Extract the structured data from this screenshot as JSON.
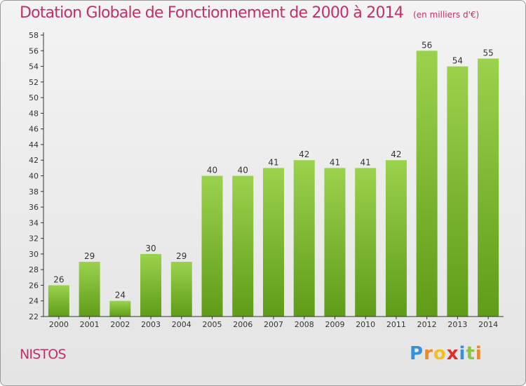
{
  "title": "Dotation Globale de Fonctionnement de 2000 à 2014",
  "unit": "(en milliers d'€)",
  "commune": "NISTOS",
  "logo": {
    "chars": [
      "P",
      "r",
      "o",
      "x",
      "i",
      "t",
      "i"
    ],
    "colors": [
      "#3a8fd9",
      "#e8892f",
      "#f0c020",
      "#d8302a",
      "#3a8fd9",
      "#8cc63f",
      "#e8892f"
    ]
  },
  "colors": {
    "title": "#c0306a",
    "bar_light": "#9bd24d",
    "bar_dark": "#5f9c17",
    "axis": "#333333"
  },
  "chart_data": {
    "type": "bar",
    "categories": [
      "2000",
      "2001",
      "2002",
      "2003",
      "2004",
      "2005",
      "2006",
      "2007",
      "2008",
      "2009",
      "2010",
      "2011",
      "2012",
      "2013",
      "2014"
    ],
    "values": [
      26,
      29,
      24,
      30,
      29,
      40,
      40,
      41,
      42,
      41,
      41,
      42,
      56,
      54,
      55
    ],
    "ylim": [
      22,
      58
    ],
    "yticks": [
      22,
      24,
      26,
      28,
      30,
      32,
      34,
      36,
      38,
      40,
      42,
      44,
      46,
      48,
      50,
      52,
      54,
      56,
      58
    ],
    "grid": false,
    "title": "Dotation Globale de Fonctionnement de 2000 à 2014",
    "ylabel": "(en milliers d'€)"
  }
}
